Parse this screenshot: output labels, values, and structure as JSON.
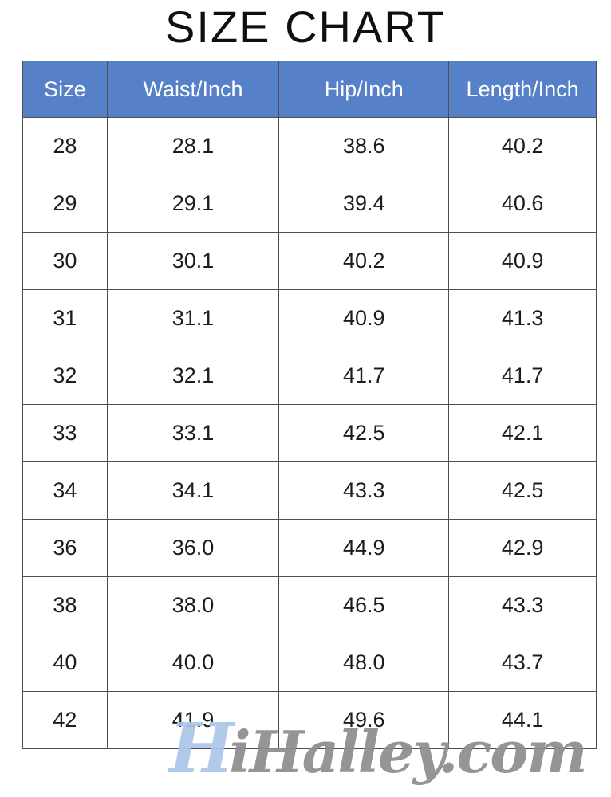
{
  "page": {
    "title": "SIZE CHART"
  },
  "colors": {
    "header_bg": "#5681c9",
    "header_text": "#ffffff",
    "grid_border": "#4f4f4f",
    "cell_text": "#1c1c1c",
    "title_text": "#0f0f0f",
    "watermark_first": "#abc6e9",
    "watermark_rest": "#8d8d8d",
    "page_bg": "#ffffff"
  },
  "watermark": {
    "first_letter": "H",
    "rest": "iHalley.com",
    "full_text": "HiHalley.com"
  },
  "chart_data": {
    "type": "table",
    "title": "SIZE CHART",
    "columns": [
      "Size",
      "Waist/Inch",
      "Hip/Inch",
      "Length/Inch"
    ],
    "rows": [
      [
        "28",
        "28.1",
        "38.6",
        "40.2"
      ],
      [
        "29",
        "29.1",
        "39.4",
        "40.6"
      ],
      [
        "30",
        "30.1",
        "40.2",
        "40.9"
      ],
      [
        "31",
        "31.1",
        "40.9",
        "41.3"
      ],
      [
        "32",
        "32.1",
        "41.7",
        "41.7"
      ],
      [
        "33",
        "33.1",
        "42.5",
        "42.1"
      ],
      [
        "34",
        "34.1",
        "43.3",
        "42.5"
      ],
      [
        "36",
        "36.0",
        "44.9",
        "42.9"
      ],
      [
        "38",
        "38.0",
        "46.5",
        "43.3"
      ],
      [
        "40",
        "40.0",
        "48.0",
        "43.7"
      ],
      [
        "42",
        "41.9",
        "49.6",
        "44.1"
      ]
    ],
    "layout_hints": {
      "header_background": "#5681c9",
      "header_text_color": "#ffffff",
      "grid": true,
      "units": "inches"
    }
  }
}
